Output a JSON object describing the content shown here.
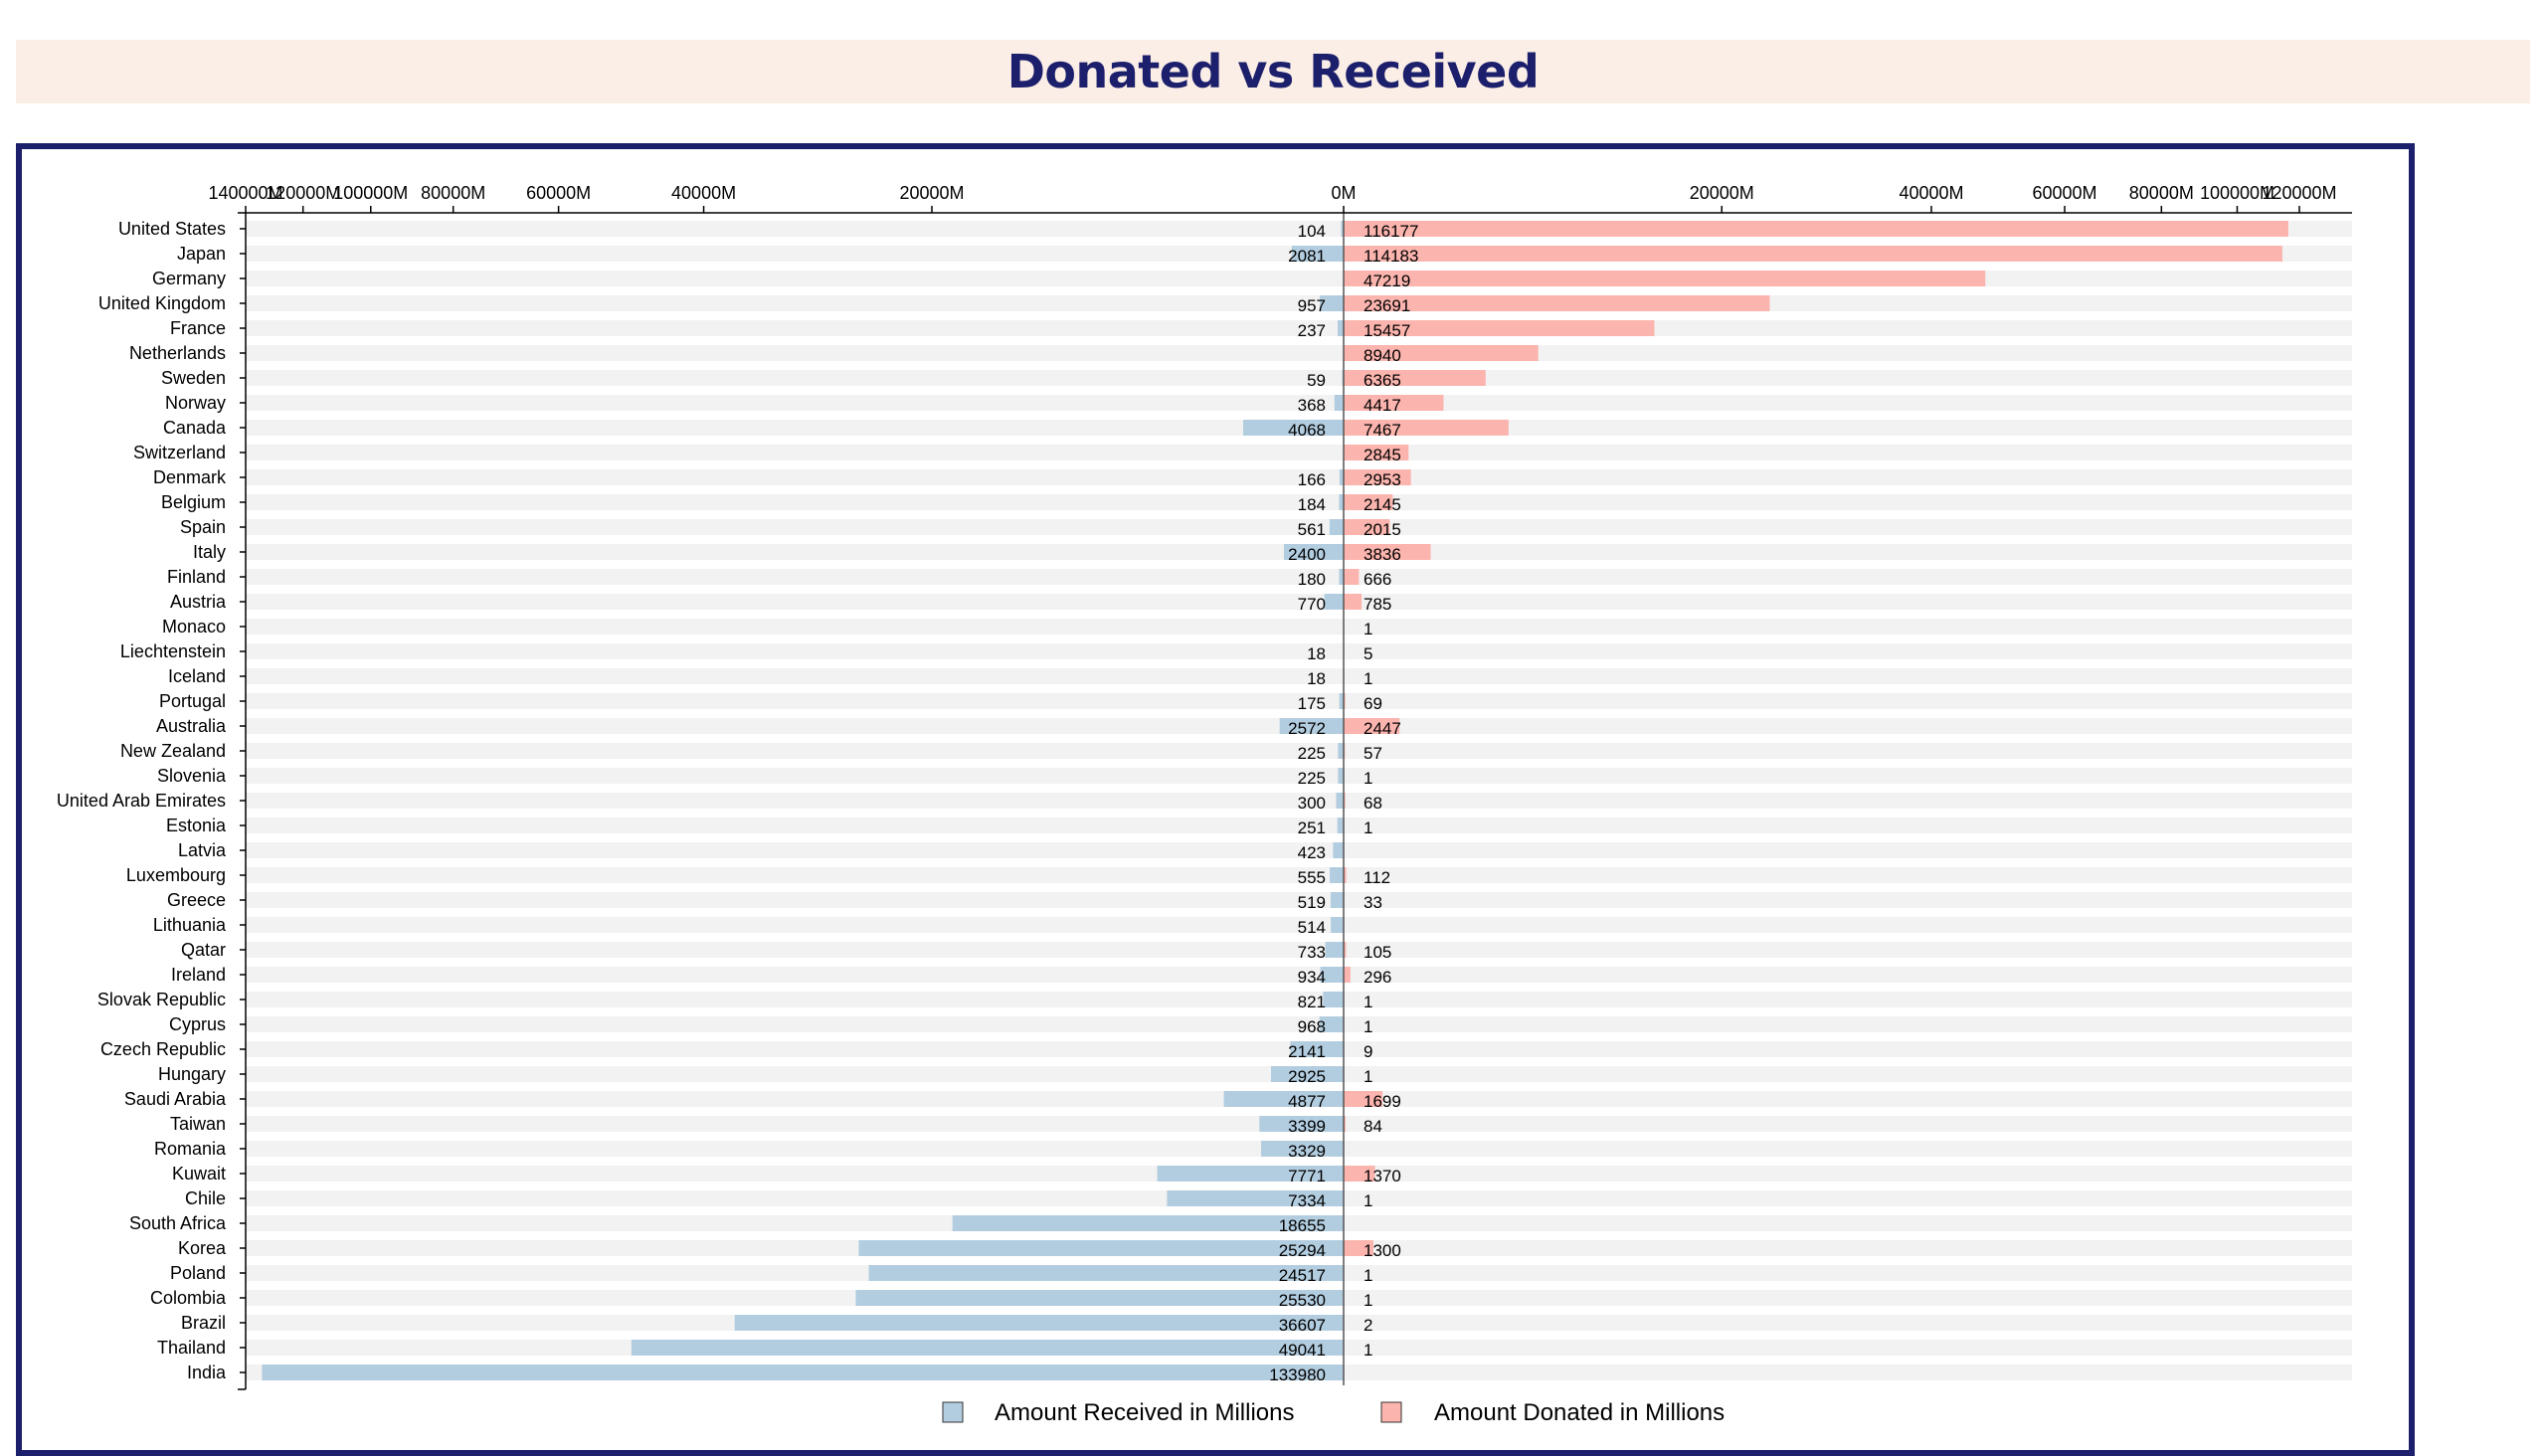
{
  "title": "Donated vs Received",
  "legend": {
    "received": "Amount Received in Millions",
    "donated": "Amount Donated in Millions"
  },
  "colors": {
    "received": "#b3cde0",
    "donated": "#fbb4ae",
    "row_background": "#f2f2f2",
    "frame": "#1c1f6b",
    "title": "#1c1f6b",
    "title_background": "#fbeee6"
  },
  "chart_data": {
    "type": "bar",
    "orientation": "diverging-horizontal",
    "x_scale": "symlog",
    "received_axis_ticks": [
      "140000M",
      "120000M",
      "100000M",
      "80000M",
      "60000M",
      "40000M",
      "20000M",
      "0M"
    ],
    "donated_axis_ticks": [
      "20000M",
      "40000M",
      "60000M",
      "80000M",
      "100000M",
      "120000M"
    ],
    "legend_position": "bottom",
    "categories": [
      "United States",
      "Japan",
      "Germany",
      "United Kingdom",
      "France",
      "Netherlands",
      "Sweden",
      "Norway",
      "Canada",
      "Switzerland",
      "Denmark",
      "Belgium",
      "Spain",
      "Italy",
      "Finland",
      "Austria",
      "Monaco",
      "Liechtenstein",
      "Iceland",
      "Portugal",
      "Australia",
      "New Zealand",
      "Slovenia",
      "United Arab Emirates",
      "Estonia",
      "Latvia",
      "Luxembourg",
      "Greece",
      "Lithuania",
      "Qatar",
      "Ireland",
      "Slovak Republic",
      "Cyprus",
      "Czech Republic",
      "Hungary",
      "Saudi Arabia",
      "Taiwan",
      "Romania",
      "Kuwait",
      "Chile",
      "South Africa",
      "Korea",
      "Poland",
      "Colombia",
      "Brazil",
      "Thailand",
      "India"
    ],
    "series": [
      {
        "name": "Amount Received in Millions",
        "values": [
          104,
          2081,
          null,
          957,
          237,
          null,
          59,
          368,
          4068,
          null,
          166,
          184,
          561,
          2400,
          180,
          770,
          null,
          18,
          18,
          175,
          2572,
          225,
          225,
          300,
          251,
          423,
          555,
          519,
          514,
          733,
          934,
          821,
          968,
          2141,
          2925,
          4877,
          3399,
          3329,
          7771,
          7334,
          18655,
          25294,
          24517,
          25530,
          36607,
          49041,
          133980
        ]
      },
      {
        "name": "Amount Donated in Millions",
        "values": [
          116177,
          114183,
          47219,
          23691,
          15457,
          8940,
          6365,
          4417,
          7467,
          2845,
          2953,
          2145,
          2015,
          3836,
          666,
          785,
          1,
          5,
          1,
          69,
          2447,
          57,
          1,
          68,
          1,
          null,
          112,
          33,
          null,
          105,
          296,
          1,
          1,
          9,
          1,
          1699,
          84,
          null,
          1370,
          1,
          null,
          1300,
          1,
          1,
          2,
          1,
          null
        ]
      }
    ]
  }
}
